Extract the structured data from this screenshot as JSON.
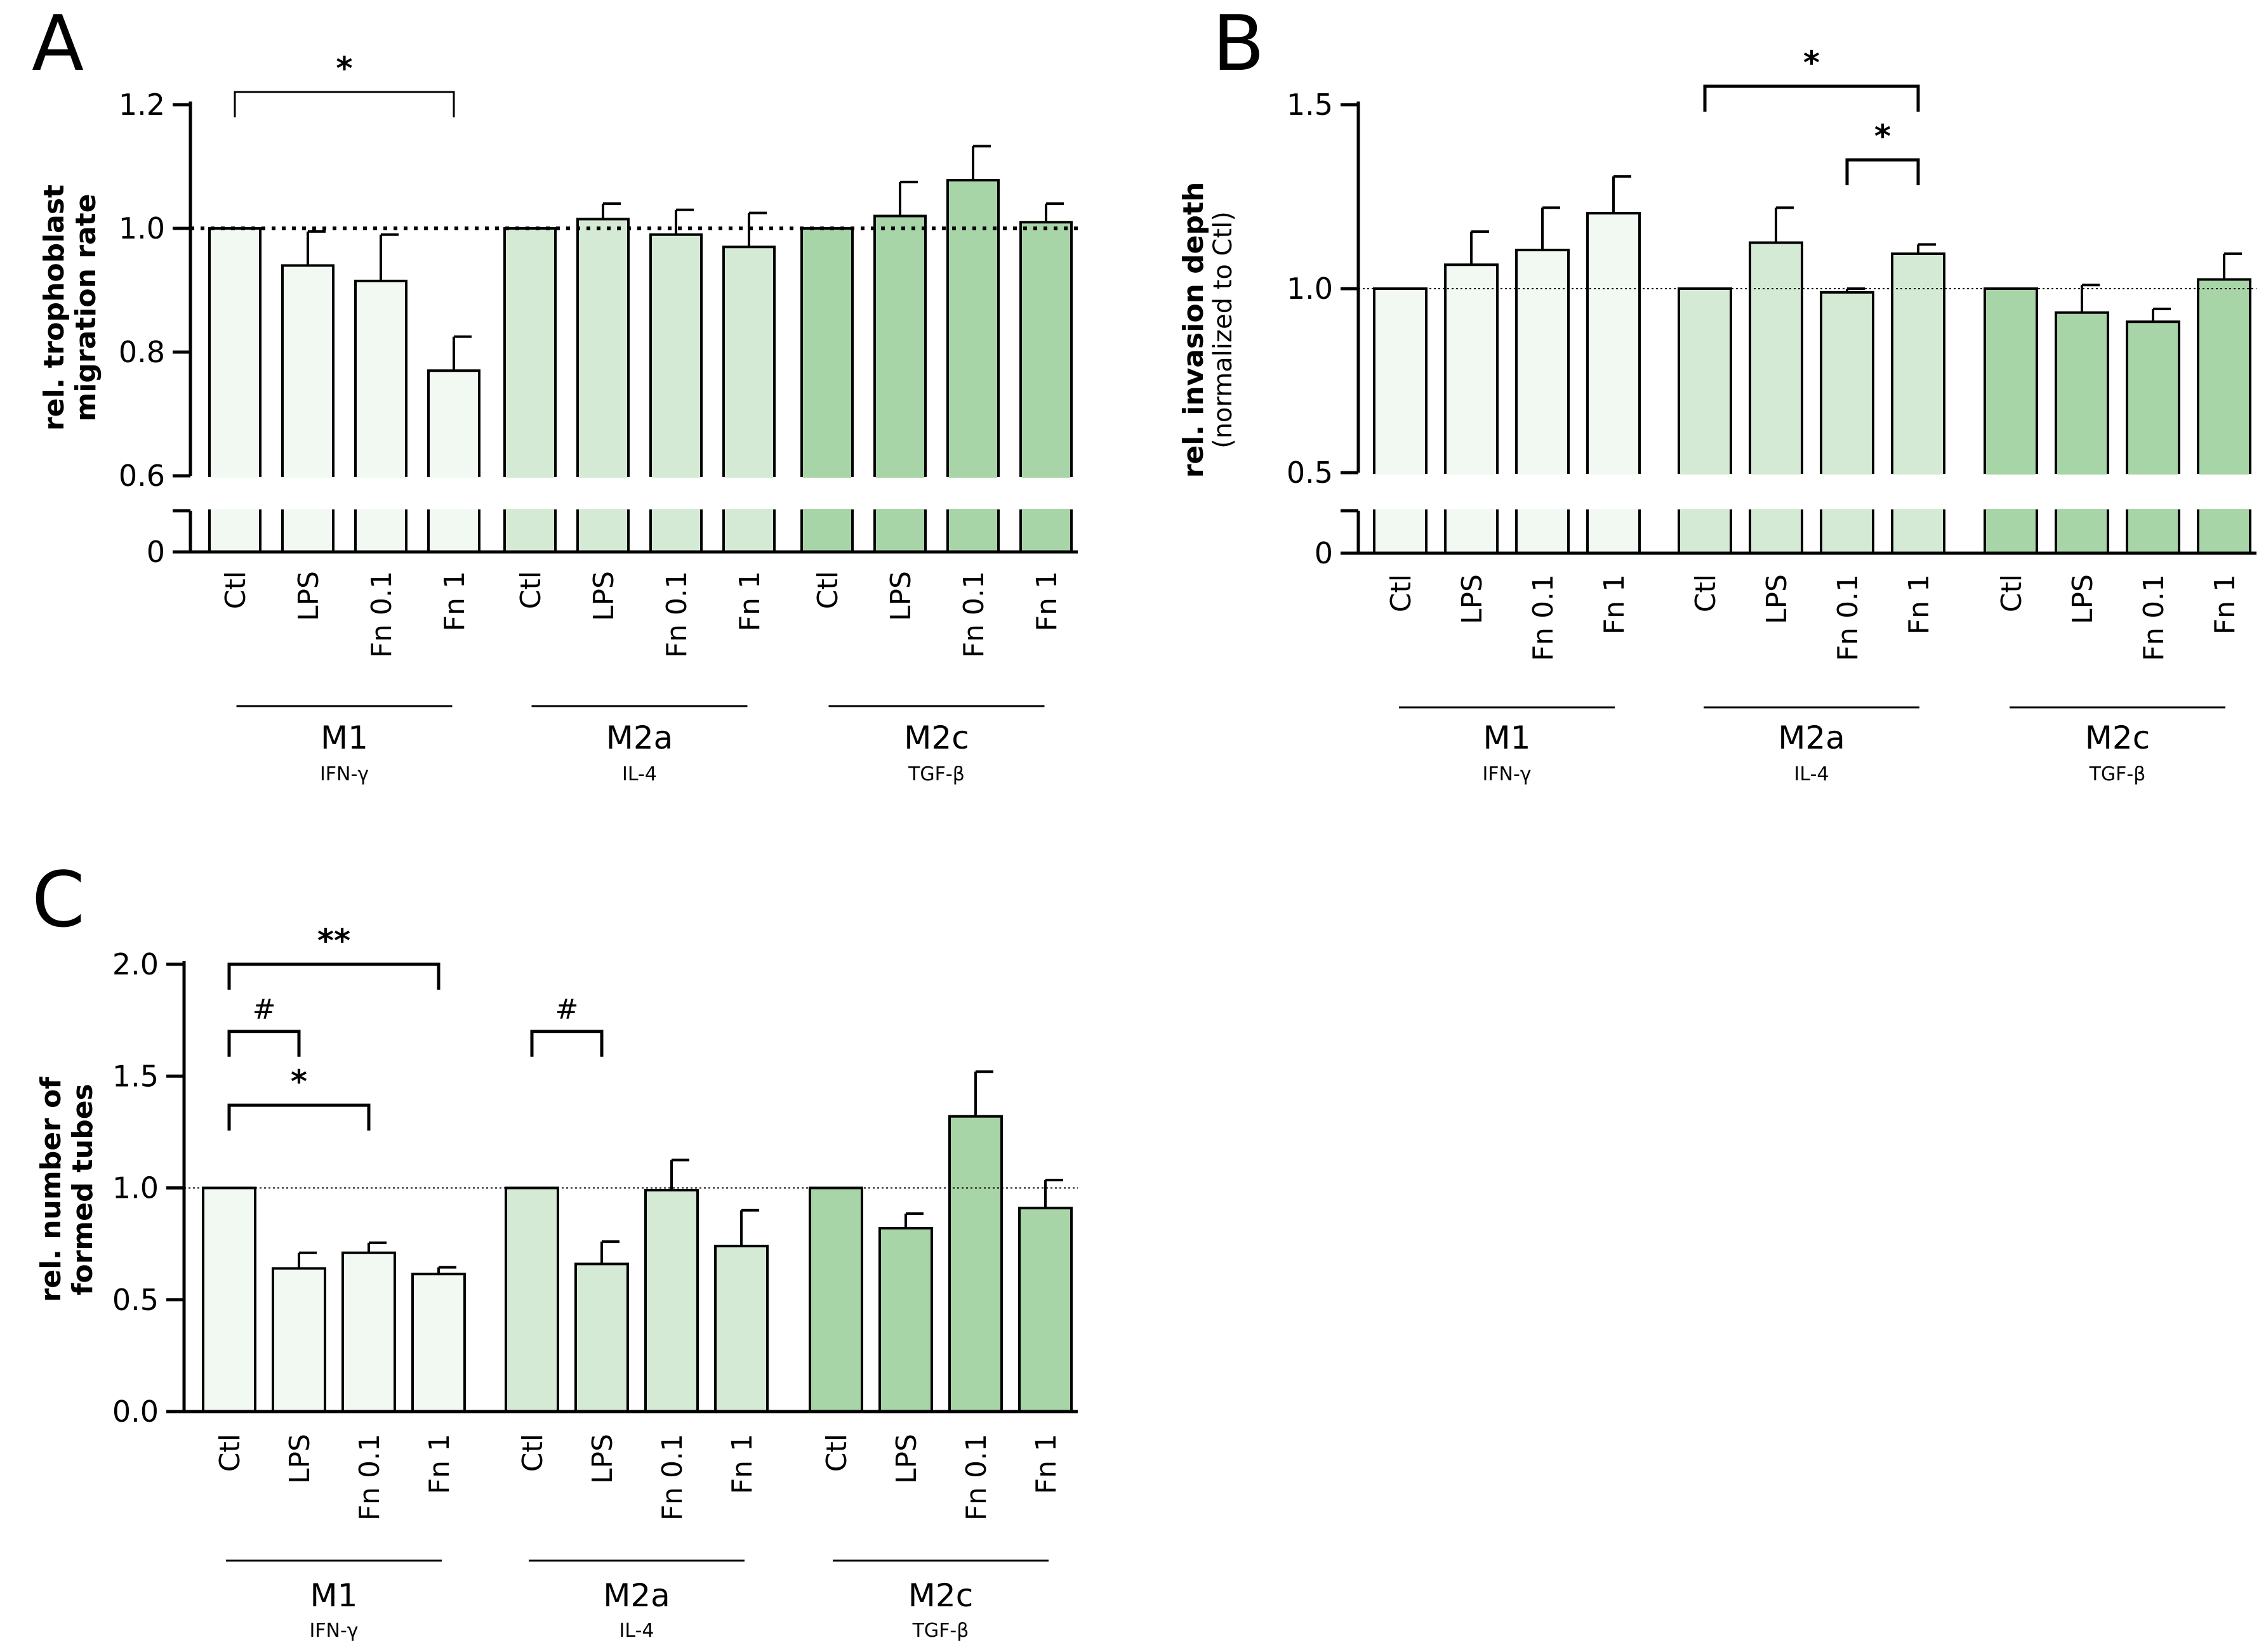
{
  "figure_colors": {
    "M1": "#f2f9f2",
    "M2a": "#d4ead4",
    "M2c": "#a8d5a8",
    "stroke": "#000000"
  },
  "chart_data": [
    {
      "panel": "A",
      "type": "bar",
      "ylabel": "rel. trophoblast migration rate",
      "ylabel_sub": "",
      "broken_axis": true,
      "ylim_upper": [
        0.6,
        1.2
      ],
      "yticks_upper": [
        "0.6",
        "0.8",
        "1.0",
        "1.2"
      ],
      "ytick_lower": "0",
      "reference_line": 1.0,
      "reference_style": "dotted-bold",
      "categories": [
        "Ctl",
        "LPS",
        "Fn 0.1",
        "Fn 1"
      ],
      "groups": [
        {
          "name": "M1",
          "sub": "IFN-γ",
          "values": [
            1.0,
            0.94,
            0.915,
            0.77
          ],
          "errors": [
            0.0,
            0.055,
            0.075,
            0.055
          ]
        },
        {
          "name": "M2a",
          "sub": "IL-4",
          "values": [
            1.0,
            1.015,
            0.99,
            0.97
          ],
          "errors": [
            0.0,
            0.025,
            0.04,
            0.055
          ]
        },
        {
          "name": "M2c",
          "sub": "TGF-β",
          "values": [
            1.0,
            1.02,
            1.078,
            1.01
          ],
          "errors": [
            0.0,
            0.055,
            0.055,
            0.03
          ]
        }
      ],
      "annotations": [
        {
          "text": "*",
          "from": [
            0,
            0
          ],
          "to": [
            0,
            3
          ],
          "level": 1.2
        }
      ]
    },
    {
      "panel": "B",
      "type": "bar",
      "ylabel": "rel. invasion depth",
      "ylabel_sub": "(normalized to Ctl)",
      "broken_axis": true,
      "ylim_upper": [
        0.5,
        1.5
      ],
      "yticks_upper": [
        "0.5",
        "1.0",
        "1.5"
      ],
      "ytick_lower": "0",
      "reference_line": 1.0,
      "reference_style": "dotted-thin",
      "categories": [
        "Ctl",
        "LPS",
        "Fn 0.1",
        "Fn 1"
      ],
      "groups": [
        {
          "name": "M1",
          "sub": "IFN-γ",
          "values": [
            1.0,
            1.065,
            1.105,
            1.205
          ],
          "errors": [
            0.0,
            0.09,
            0.115,
            0.1
          ]
        },
        {
          "name": "M2a",
          "sub": "IL-4",
          "values": [
            1.0,
            1.125,
            0.99,
            1.095
          ],
          "errors": [
            0.0,
            0.095,
            0.01,
            0.025
          ]
        },
        {
          "name": "M2c",
          "sub": "TGF-β",
          "values": [
            1.0,
            0.935,
            0.91,
            1.025
          ],
          "errors": [
            0.0,
            0.075,
            0.035,
            0.07
          ]
        }
      ],
      "annotations": [
        {
          "text": "*",
          "from": [
            1,
            0
          ],
          "to": [
            1,
            3
          ],
          "level": 1.55
        },
        {
          "text": "*",
          "from": [
            1,
            2
          ],
          "to": [
            1,
            3
          ],
          "level": 1.35
        }
      ]
    },
    {
      "panel": "C",
      "type": "bar",
      "ylabel": "rel. number of",
      "ylabel2": "formed tubes",
      "broken_axis": false,
      "ylim": [
        0.0,
        2.0
      ],
      "yticks": [
        "0.0",
        "0.5",
        "1.0",
        "1.5",
        "2.0"
      ],
      "reference_line": 1.0,
      "reference_style": "dotted-thin",
      "categories": [
        "Ctl",
        "LPS",
        "Fn 0.1",
        "Fn 1"
      ],
      "groups": [
        {
          "name": "M1",
          "sub": "IFN-γ",
          "values": [
            1.0,
            0.64,
            0.71,
            0.615
          ],
          "errors": [
            0.0,
            0.07,
            0.045,
            0.03
          ]
        },
        {
          "name": "M2a",
          "sub": "IL-4",
          "values": [
            1.0,
            0.66,
            0.99,
            0.74
          ],
          "errors": [
            0.0,
            0.1,
            0.135,
            0.16
          ]
        },
        {
          "name": "M2c",
          "sub": "TGF-β",
          "values": [
            1.0,
            0.82,
            1.32,
            0.91
          ],
          "errors": [
            0.0,
            0.065,
            0.2,
            0.125
          ]
        }
      ],
      "annotations": [
        {
          "text": "**",
          "from": [
            0,
            0
          ],
          "to": [
            0,
            3
          ],
          "level": 2.0
        },
        {
          "text": "#",
          "from": [
            0,
            0
          ],
          "to": [
            0,
            1
          ],
          "level": 1.7
        },
        {
          "text": "*",
          "from": [
            0,
            0
          ],
          "to": [
            0,
            2
          ],
          "level": 1.37
        },
        {
          "text": "#",
          "from": [
            1,
            0
          ],
          "to": [
            1,
            1
          ],
          "level": 1.7
        }
      ]
    }
  ]
}
